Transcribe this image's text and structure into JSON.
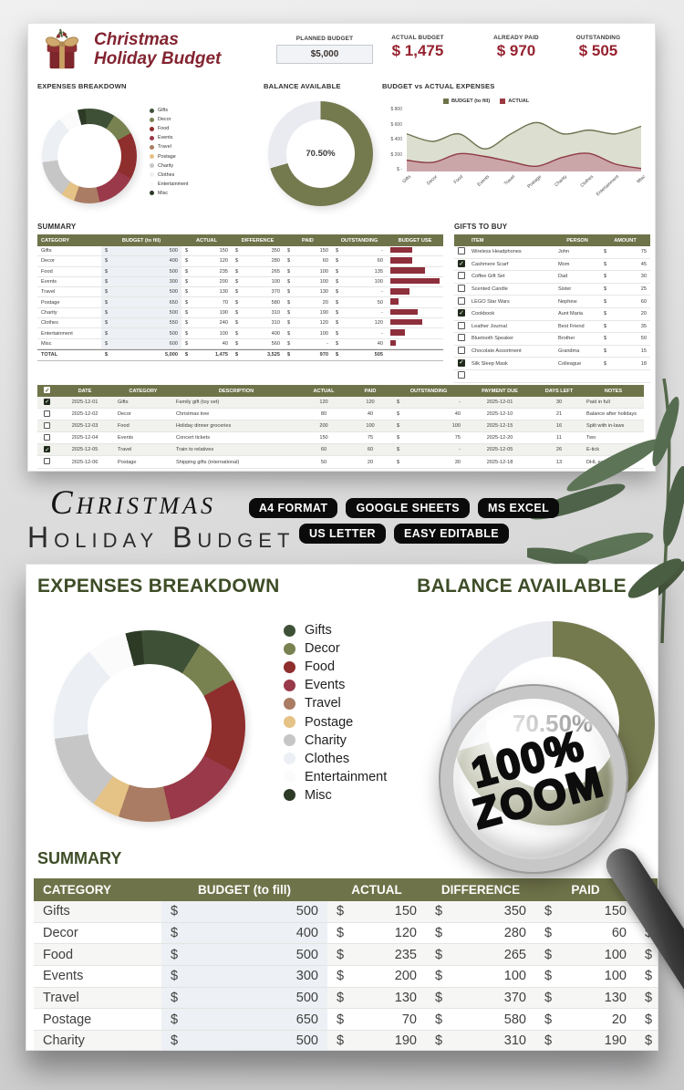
{
  "colors": {
    "olive": "#6f7349",
    "ring_rest": "#e9ebf0",
    "brand_red": "#96222f",
    "heading_green": "#3e4d27",
    "bar_red": "#8e2f3c",
    "budget_fill": "#dcdecf",
    "budget_line": "#6b7450",
    "actual_fill": "#cba6a9",
    "actual_line": "#8e3b44",
    "legend_budget": "#6f7349",
    "legend_actual": "#9c3a42"
  },
  "categories": [
    {
      "name": "Gifts",
      "color": "#3e5137"
    },
    {
      "name": "Decor",
      "color": "#788150"
    },
    {
      "name": "Food",
      "color": "#8e2e2d"
    },
    {
      "name": "Events",
      "color": "#99394a"
    },
    {
      "name": "Travel",
      "color": "#a97c63"
    },
    {
      "name": "Postage",
      "color": "#e5c285"
    },
    {
      "name": "Charity",
      "color": "#c6c6c6"
    },
    {
      "name": "Clothes",
      "color": "#eceff3"
    },
    {
      "name": "Entertainment",
      "color": "#fbfbfc"
    },
    {
      "name": "Misc",
      "color": "#2c3a26"
    }
  ],
  "chart_data": [
    {
      "type": "pie",
      "title": "EXPENSES BREAKDOWN",
      "categories": [
        "Gifts",
        "Decor",
        "Food",
        "Events",
        "Travel",
        "Postage",
        "Charity",
        "Clothes",
        "Entertainment",
        "Misc"
      ],
      "values": [
        150,
        120,
        235,
        200,
        130,
        70,
        190,
        240,
        100,
        40
      ],
      "colors": [
        "#3e5137",
        "#788150",
        "#8e2e2d",
        "#99394a",
        "#a97c63",
        "#e5c285",
        "#c6c6c6",
        "#eceff3",
        "#fbfbfc",
        "#2c3a26"
      ],
      "hole": 0.66,
      "legend_position": "right"
    },
    {
      "type": "pie",
      "title": "BALANCE AVAILABLE",
      "categories": [
        "Available",
        "Used"
      ],
      "values": [
        70.5,
        29.5
      ],
      "label": "70.50%",
      "colors": [
        "#75794e",
        "#e9ebf0"
      ]
    },
    {
      "type": "area",
      "title": "BUDGET vs ACTUAL EXPENSES",
      "categories": [
        "Gifts",
        "Decor",
        "Food",
        "Events",
        "Travel",
        "Postage",
        "Charity",
        "Clothes",
        "Entertainment",
        "Misc"
      ],
      "series": [
        {
          "name": "BUDGET (to fill)",
          "values": [
            500,
            400,
            500,
            300,
            500,
            650,
            500,
            550,
            500,
            600
          ]
        },
        {
          "name": "ACTUAL",
          "values": [
            150,
            120,
            235,
            200,
            130,
            70,
            190,
            240,
            100,
            40
          ]
        }
      ],
      "yticks": [
        "$ 800",
        "$ 600",
        "$ 400",
        "$ 200",
        "$ -"
      ],
      "ylim": [
        0,
        800
      ],
      "legend_position": "top",
      "grid": false
    }
  ],
  "header": {
    "title_line1": "Christmas",
    "title_line2": "Holiday Budget",
    "planned_label": "PLANNED BUDGET",
    "planned_value": "$5,000",
    "actual_label": "ACTUAL BUDGET",
    "actual_value": "$ 1,475",
    "paid_label": "ALREADY PAID",
    "paid_value": "$ 970",
    "outstanding_label": "OUTSTANDING",
    "outstanding_value": "$ 505"
  },
  "sections": {
    "expenses": "EXPENSES BREAKDOWN",
    "balance": "BALANCE AVAILABLE",
    "bva": "BUDGET vs ACTUAL EXPENSES",
    "summary": "SUMMARY",
    "gifts": "GIFTS TO BUY"
  },
  "balance_pct": "70.50%",
  "summary": {
    "headers": [
      "CATEGORY",
      "BUDGET (to fill)",
      "ACTUAL",
      "DIFFERENCE",
      "PAID",
      "OUTSTANDING",
      "BUDGET USE"
    ],
    "rows": [
      {
        "category": "Gifts",
        "budget": "500",
        "actual": "150",
        "difference": "350",
        "paid": "150",
        "outstanding": "-",
        "use_pct": 30
      },
      {
        "category": "Decor",
        "budget": "400",
        "actual": "120",
        "difference": "280",
        "paid": "60",
        "outstanding": "60",
        "use_pct": 30
      },
      {
        "category": "Food",
        "budget": "500",
        "actual": "235",
        "difference": "265",
        "paid": "100",
        "outstanding": "135",
        "use_pct": 47
      },
      {
        "category": "Events",
        "budget": "300",
        "actual": "200",
        "difference": "100",
        "paid": "100",
        "outstanding": "100",
        "use_pct": 67
      },
      {
        "category": "Travel",
        "budget": "500",
        "actual": "130",
        "difference": "370",
        "paid": "130",
        "outstanding": "-",
        "use_pct": 26
      },
      {
        "category": "Postage",
        "budget": "650",
        "actual": "70",
        "difference": "580",
        "paid": "20",
        "outstanding": "50",
        "use_pct": 11
      },
      {
        "category": "Charity",
        "budget": "500",
        "actual": "190",
        "difference": "310",
        "paid": "190",
        "outstanding": "-",
        "use_pct": 38
      },
      {
        "category": "Clothes",
        "budget": "550",
        "actual": "240",
        "difference": "310",
        "paid": "120",
        "outstanding": "120",
        "use_pct": 44
      },
      {
        "category": "Entertainment",
        "budget": "500",
        "actual": "100",
        "difference": "400",
        "paid": "100",
        "outstanding": "-",
        "use_pct": 20
      },
      {
        "category": "Misc",
        "budget": "600",
        "actual": "40",
        "difference": "560",
        "paid": "-",
        "outstanding": "40",
        "use_pct": 7
      }
    ],
    "total": {
      "label": "TOTAL",
      "budget": "5,000",
      "actual": "1,475",
      "difference": "3,525",
      "paid": "970",
      "outstanding": "505"
    }
  },
  "gifts": {
    "headers": [
      "ITEM",
      "PERSON",
      "AMOUNT"
    ],
    "rows": [
      {
        "checked": false,
        "item": "Wireless Headphones",
        "person": "John",
        "dollar": "$",
        "amount": "75"
      },
      {
        "checked": true,
        "item": "Cashmere Scarf",
        "person": "Mom",
        "dollar": "$",
        "amount": "45"
      },
      {
        "checked": false,
        "item": "Coffee Gift Set",
        "person": "Dad",
        "dollar": "$",
        "amount": "30"
      },
      {
        "checked": false,
        "item": "Scented Candle",
        "person": "Sister",
        "dollar": "$",
        "amount": "25"
      },
      {
        "checked": false,
        "item": "LEGO Star Wars",
        "person": "Nephew",
        "dollar": "$",
        "amount": "60"
      },
      {
        "checked": true,
        "item": "Cookbook",
        "person": "Aunt Maria",
        "dollar": "$",
        "amount": "20"
      },
      {
        "checked": false,
        "item": "Leather Journal",
        "person": "Best Friend",
        "dollar": "$",
        "amount": "35"
      },
      {
        "checked": false,
        "item": "Bluetooth Speaker",
        "person": "Brother",
        "dollar": "$",
        "amount": "50"
      },
      {
        "checked": false,
        "item": "Chocolate Assortment",
        "person": "Grandma",
        "dollar": "$",
        "amount": "15"
      },
      {
        "checked": true,
        "item": "Silk Sleep Mask",
        "person": "Colleague",
        "dollar": "$",
        "amount": "18"
      },
      {
        "checked": false,
        "item": "",
        "person": "",
        "dollar": "",
        "amount": ""
      }
    ]
  },
  "transactions": {
    "headers": [
      "DATE",
      "CATEGORY",
      "DESCRIPTION",
      "ACTUAL",
      "PAID",
      "OUTSTANDING",
      "PAYMENT DUE",
      "DAYS LEFT",
      "NOTES"
    ],
    "rows": [
      {
        "checked": true,
        "date": "2025-12-01",
        "category": "Gifts",
        "description": "Family gift (toy set)",
        "actual": "120",
        "paid": "120",
        "outstanding": "-",
        "due": "2025-12-01",
        "days_left": "30",
        "notes": "Paid in full"
      },
      {
        "checked": false,
        "date": "2025-12-02",
        "category": "Decor",
        "description": "Christmas tree",
        "actual": "80",
        "paid": "40",
        "outstanding": "40",
        "due": "2025-12-10",
        "days_left": "21",
        "notes": "Balance after holidays"
      },
      {
        "checked": false,
        "date": "2025-12-03",
        "category": "Food",
        "description": "Holiday dinner groceries",
        "actual": "200",
        "paid": "100",
        "outstanding": "100",
        "due": "2025-12-15",
        "days_left": "16",
        "notes": "Split with in-laws"
      },
      {
        "checked": false,
        "date": "2025-12-04",
        "category": "Events",
        "description": "Concert tickets",
        "actual": "150",
        "paid": "75",
        "outstanding": "75",
        "due": "2025-12-20",
        "days_left": "11",
        "notes": "Two"
      },
      {
        "checked": true,
        "date": "2025-12-05",
        "category": "Travel",
        "description": "Train to relatives",
        "actual": "60",
        "paid": "60",
        "outstanding": "-",
        "due": "2025-12-05",
        "days_left": "26",
        "notes": "E-tick"
      },
      {
        "checked": false,
        "date": "2025-12-06",
        "category": "Postage",
        "description": "Shipping gifts (international)",
        "actual": "50",
        "paid": "20",
        "outstanding": "30",
        "due": "2025-12-18",
        "days_left": "13",
        "notes": "DHL exp"
      }
    ]
  },
  "middle": {
    "title_line1": "Christmas",
    "title_line2": "Holiday Budget",
    "badges_row1": [
      "A4 FORMAT",
      "GOOGLE SHEETS",
      "MS EXCEL"
    ],
    "badges_row2": [
      "US LETTER",
      "EASY EDITABLE"
    ]
  },
  "magnifier": {
    "line1": "100%",
    "line2": "ZOOM"
  }
}
